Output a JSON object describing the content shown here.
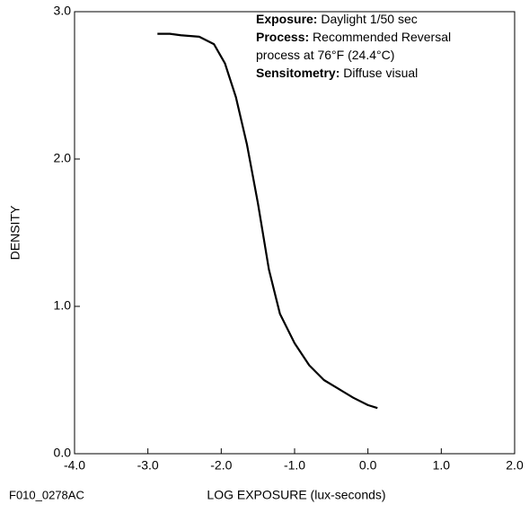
{
  "chart_data": {
    "type": "line",
    "xlabel": "LOG EXPOSURE (lux-seconds)",
    "ylabel": "DENSITY",
    "footnote": "F010_0278AC",
    "annotations": [
      {
        "label": "Exposure:",
        "text": "Daylight 1/50 sec"
      },
      {
        "label": "Process:",
        "text": "Recommended Reversal"
      },
      {
        "text": "process at 76°F (24.4°C)"
      },
      {
        "label": "Sensitometry:",
        "text": "Diffuse visual"
      }
    ],
    "xlim": [
      -4.0,
      2.0
    ],
    "ylim": [
      0.0,
      3.0
    ],
    "xticks": [
      {
        "value": -4,
        "label": "-4.0"
      },
      {
        "value": -3,
        "label": "-3.0"
      },
      {
        "value": -2,
        "label": "-2.0"
      },
      {
        "value": -1,
        "label": "-1.0"
      },
      {
        "value": 0,
        "label": "0.0"
      },
      {
        "value": 1,
        "label": "1.0"
      },
      {
        "value": 2,
        "label": "2.0"
      }
    ],
    "yticks": [
      {
        "value": 0,
        "label": "0.0"
      },
      {
        "value": 1,
        "label": "1.0"
      },
      {
        "value": 2,
        "label": "2.0"
      },
      {
        "value": 3,
        "label": "3.0"
      }
    ],
    "series": [
      {
        "color": "#000000",
        "x": [
          -2.87,
          -2.7,
          -2.55,
          -2.3,
          -2.1,
          -1.95,
          -1.8,
          -1.65,
          -1.5,
          -1.35,
          -1.2,
          -1.0,
          -0.8,
          -0.6,
          -0.4,
          -0.2,
          0.0,
          0.13
        ],
        "values": [
          2.85,
          2.85,
          2.84,
          2.83,
          2.78,
          2.65,
          2.42,
          2.1,
          1.7,
          1.25,
          0.95,
          0.75,
          0.6,
          0.5,
          0.44,
          0.38,
          0.33,
          0.31
        ]
      }
    ]
  }
}
